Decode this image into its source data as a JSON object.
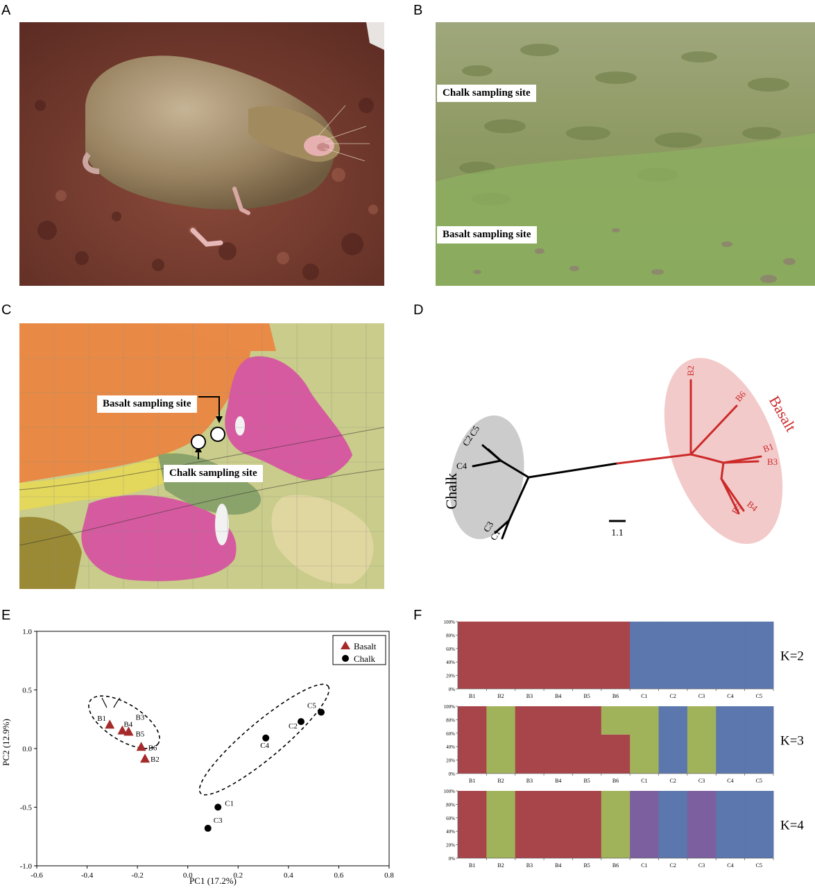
{
  "panels": {
    "a": {
      "letter": "A"
    },
    "b": {
      "letter": "B",
      "labels": [
        "Chalk sampling site",
        "Basalt sampling site"
      ]
    },
    "c": {
      "letter": "C",
      "labels": [
        "Basalt sampling site",
        "Chalk sampling site"
      ]
    },
    "d": {
      "letter": "D",
      "groups": [
        "Chalk",
        "Basalt"
      ],
      "scale_label": "1.1",
      "chalk_tips": [
        "C5",
        "C2",
        "C4",
        "C3",
        "C1"
      ],
      "basalt_tips": [
        "B2",
        "B6",
        "B1",
        "B3",
        "B4",
        "B5"
      ],
      "colors": {
        "chalk": "#000000",
        "basalt": "#cc2a2a",
        "chalk_ellipse": "#cccccc",
        "basalt_ellipse": "#f3caca"
      }
    },
    "e": {
      "letter": "E"
    },
    "f": {
      "letter": "F"
    }
  },
  "chart_data": [
    {
      "type": "scatter",
      "xlabel": "PC1 (17.2%)",
      "ylabel": "PC2 (12.9%)",
      "xlim": [
        -0.6,
        0.8
      ],
      "ylim": [
        -1.0,
        1.0
      ],
      "xticks": [
        "-0.6",
        "-0.4",
        "-0.2",
        "0.0",
        "0.2",
        "0.4",
        "0.6",
        "0.8"
      ],
      "yticks": [
        "1.0",
        "0.5",
        "0.0",
        "-0.5",
        "-1.0"
      ],
      "legend_position": "top-right",
      "series": [
        {
          "name": "Basalt",
          "marker": "triangle",
          "color": "#a52a2a",
          "points": [
            {
              "label": "B1",
              "x": -0.31,
              "y": 0.2
            },
            {
              "label": "B3",
              "x": -0.235,
              "y": 0.14
            },
            {
              "label": "B4",
              "x": -0.26,
              "y": 0.15
            },
            {
              "label": "B5",
              "x": -0.235,
              "y": 0.14
            },
            {
              "label": "B6",
              "x": -0.185,
              "y": 0.01
            },
            {
              "label": "B2",
              "x": -0.17,
              "y": -0.09
            }
          ]
        },
        {
          "name": "Chalk",
          "marker": "circle",
          "color": "#000000",
          "points": [
            {
              "label": "C5",
              "x": 0.53,
              "y": 0.31
            },
            {
              "label": "C2",
              "x": 0.45,
              "y": 0.23
            },
            {
              "label": "C4",
              "x": 0.31,
              "y": 0.09
            },
            {
              "label": "C1",
              "x": 0.12,
              "y": -0.5
            },
            {
              "label": "C3",
              "x": 0.08,
              "y": -0.68
            }
          ]
        }
      ]
    },
    {
      "type": "bar",
      "stacked": true,
      "categories": [
        "B1",
        "B2",
        "B3",
        "B4",
        "B5",
        "B6",
        "C1",
        "C2",
        "C3",
        "C4",
        "C5"
      ],
      "yticks": [
        "100%",
        "80%",
        "60%",
        "40%",
        "20%",
        "0%"
      ],
      "cluster_colors": [
        "#a8454b",
        "#a1b35a",
        "#5b77ad",
        "#7b5f9e"
      ],
      "plots": [
        {
          "label": "K=2",
          "values": [
            [
              1,
              0
            ],
            [
              1,
              0
            ],
            [
              1,
              0
            ],
            [
              1,
              0
            ],
            [
              1,
              0
            ],
            [
              1,
              0
            ],
            [
              0,
              1
            ],
            [
              0,
              1
            ],
            [
              0,
              1
            ],
            [
              0,
              1
            ],
            [
              0,
              1
            ]
          ],
          "clusters": [
            0,
            2
          ]
        },
        {
          "label": "K=3",
          "values": [
            [
              1,
              0,
              0
            ],
            [
              0,
              1,
              0
            ],
            [
              1,
              0,
              0
            ],
            [
              1,
              0,
              0
            ],
            [
              1,
              0,
              0
            ],
            [
              0.58,
              0.42,
              0
            ],
            [
              0,
              1,
              0
            ],
            [
              0,
              0,
              1
            ],
            [
              0,
              1,
              0
            ],
            [
              0,
              0,
              1
            ],
            [
              0,
              0,
              1
            ]
          ],
          "clusters": [
            0,
            1,
            2
          ]
        },
        {
          "label": "K=4",
          "values": [
            [
              1,
              0,
              0,
              0
            ],
            [
              0,
              1,
              0,
              0
            ],
            [
              1,
              0,
              0,
              0
            ],
            [
              1,
              0,
              0,
              0
            ],
            [
              1,
              0,
              0,
              0
            ],
            [
              0,
              1,
              0,
              0
            ],
            [
              0,
              0,
              0,
              1
            ],
            [
              0,
              0,
              1,
              0
            ],
            [
              0,
              0,
              0,
              1
            ],
            [
              0,
              0,
              1,
              0
            ],
            [
              0,
              0,
              1,
              0
            ]
          ],
          "clusters": [
            0,
            1,
            2,
            3
          ]
        }
      ]
    }
  ]
}
